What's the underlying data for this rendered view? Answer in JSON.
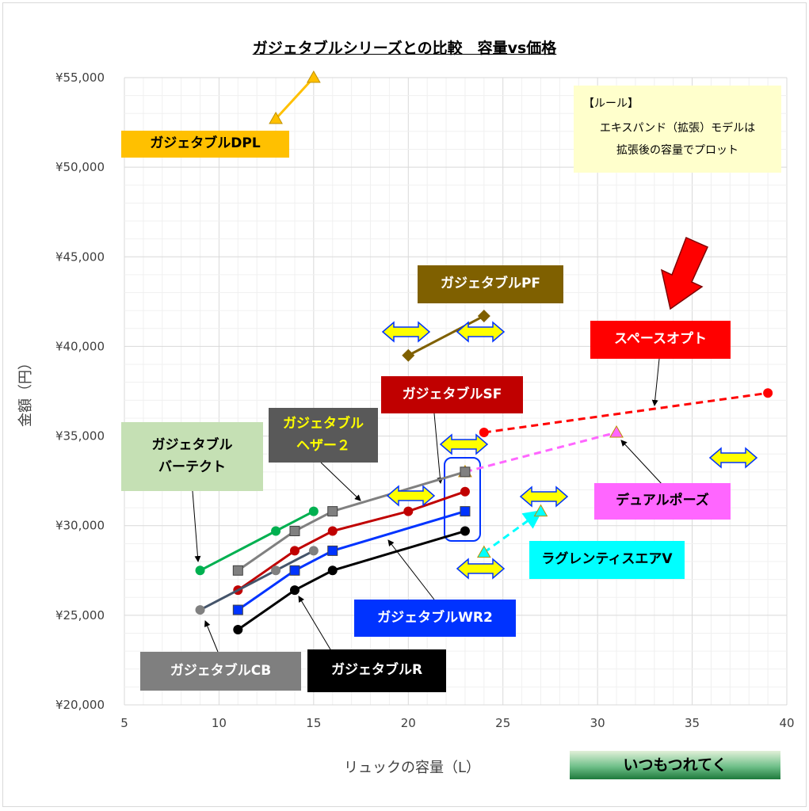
{
  "chart_data": {
    "type": "line",
    "title": "ガジェタブルシリーズとの比較　容量vs価格",
    "xlabel": "リュックの容量（L）",
    "ylabel": "金額（円）",
    "xlim": [
      5,
      40
    ],
    "ylim": [
      20000,
      55000
    ],
    "x_ticks": [
      "5",
      "10",
      "15",
      "20",
      "25",
      "30",
      "35",
      "40"
    ],
    "y_ticks": [
      "¥20,000",
      "¥25,000",
      "¥30,000",
      "¥35,000",
      "¥40,000",
      "¥45,000",
      "¥50,000",
      "¥55,000"
    ],
    "grid": true,
    "series": [
      {
        "name": "ガジェタブルDPL",
        "color": "#FFC000",
        "marker": "triangle",
        "dash": false,
        "points": [
          [
            13,
            52700
          ],
          [
            15,
            55000
          ]
        ]
      },
      {
        "name": "ガジェタブルPF",
        "color": "#7F6000",
        "marker": "diamond",
        "dash": false,
        "points": [
          [
            20,
            39500
          ],
          [
            24,
            41700
          ]
        ]
      },
      {
        "name": "スペースオプト",
        "color": "#FF0000",
        "marker": "circle",
        "dash": true,
        "points": [
          [
            24,
            35200
          ],
          [
            39,
            37400
          ]
        ]
      },
      {
        "name": "デュアルポーズ",
        "color": "#FF66FF",
        "marker": "triangle",
        "dash": true,
        "points": [
          [
            23,
            33000
          ],
          [
            31,
            35200
          ]
        ]
      },
      {
        "name": "ラグレンティスエアV",
        "color": "#00FFFF",
        "marker": "triangle",
        "dash": true,
        "points": [
          [
            24,
            28500
          ],
          [
            27,
            30800
          ]
        ]
      },
      {
        "name": "ガジェタブルバーテクト",
        "color": "#00B050",
        "marker": "circle",
        "dash": false,
        "points": [
          [
            9,
            27500
          ],
          [
            13,
            29700
          ],
          [
            15,
            30800
          ]
        ]
      },
      {
        "name": "ガジェタブルヘザー２",
        "color": "#808080",
        "marker": "square",
        "dash": false,
        "points": [
          [
            11,
            27500
          ],
          [
            14,
            29700
          ],
          [
            16,
            30800
          ],
          [
            23,
            33000
          ]
        ]
      },
      {
        "name": "ガジェタブルSF",
        "color": "#C00000",
        "marker": "circle",
        "dash": false,
        "points": [
          [
            11,
            26400
          ],
          [
            14,
            28600
          ],
          [
            16,
            29700
          ],
          [
            20,
            30800
          ],
          [
            23,
            31900
          ]
        ]
      },
      {
        "name": "ガジェタブルWR2",
        "color": "#0033FF",
        "marker": "square",
        "dash": false,
        "points": [
          [
            11,
            25300
          ],
          [
            14,
            27500
          ],
          [
            16,
            28600
          ],
          [
            23,
            30800
          ]
        ]
      },
      {
        "name": "ガジェタブルR",
        "color": "#000000",
        "marker": "circle",
        "dash": false,
        "points": [
          [
            11,
            24200
          ],
          [
            14,
            26400
          ],
          [
            16,
            27500
          ],
          [
            23,
            29700
          ]
        ]
      },
      {
        "name": "ガジェタブルCB",
        "color": "#808080",
        "marker": "circle",
        "dash": false,
        "line_color": "#44546A",
        "points": [
          [
            9,
            25300
          ],
          [
            13,
            27500
          ],
          [
            15,
            28600
          ]
        ]
      }
    ]
  },
  "labels": {
    "dpl": "ガジェタブルDPL",
    "pf": "ガジェタブルPF",
    "spaceopt": "スペースオプト",
    "sf": "ガジェタブルSF",
    "heather": "ガジェタブル\nヘザー２",
    "vertect": "ガジェタブル\nバーテクト",
    "dualpose": "デュアルポーズ",
    "ragrenti": "ラグレンティスエアV",
    "wr2": "ガジェタブルWR2",
    "cb": "ガジェタブルCB",
    "r": "ガジェタブルR",
    "itsumo": "いつもつれてく"
  },
  "rule": {
    "heading": "【ルール】",
    "body": "エキスパンド（拡張）モデルは\n拡張後の容量でプロット"
  },
  "colors": {
    "expand_arrow": "#FFFF00",
    "expand_arrow_border": "#0033FF",
    "highlight_arrow": "#FF0000"
  }
}
